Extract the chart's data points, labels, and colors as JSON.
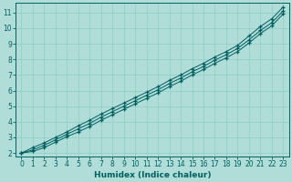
{
  "xlabel": "Humidex (Indice chaleur)",
  "bg_color": "#b0ddd8",
  "grid_color": "#8ecec9",
  "line_color": "#006060",
  "xlim": [
    -0.5,
    23.5
  ],
  "ylim": [
    1.8,
    11.6
  ],
  "x_ticks": [
    0,
    1,
    2,
    3,
    4,
    5,
    6,
    7,
    8,
    9,
    10,
    11,
    12,
    13,
    14,
    15,
    16,
    17,
    18,
    19,
    20,
    21,
    22,
    23
  ],
  "y_ticks": [
    2,
    3,
    4,
    5,
    6,
    7,
    8,
    9,
    10,
    11
  ],
  "line1_x": [
    0,
    1,
    2,
    3,
    4,
    5,
    6,
    7,
    8,
    9,
    10,
    11,
    12,
    13,
    14,
    15,
    16,
    17,
    18,
    19,
    20,
    21,
    22,
    23
  ],
  "line1_y": [
    2.0,
    2.35,
    2.65,
    3.0,
    3.35,
    3.75,
    4.1,
    4.5,
    4.85,
    5.2,
    5.55,
    5.9,
    6.25,
    6.65,
    7.0,
    7.4,
    7.75,
    8.15,
    8.5,
    8.9,
    9.5,
    10.1,
    10.6,
    11.35
  ],
  "line2_x": [
    0,
    1,
    2,
    3,
    4,
    5,
    6,
    7,
    8,
    9,
    10,
    11,
    12,
    13,
    14,
    15,
    16,
    17,
    18,
    19,
    20,
    21,
    22,
    23
  ],
  "line2_y": [
    2.0,
    2.2,
    2.5,
    2.85,
    3.2,
    3.55,
    3.9,
    4.3,
    4.65,
    5.0,
    5.35,
    5.7,
    6.05,
    6.45,
    6.8,
    7.2,
    7.55,
    7.95,
    8.3,
    8.7,
    9.25,
    9.85,
    10.35,
    11.1
  ],
  "line3_x": [
    0,
    1,
    2,
    3,
    4,
    5,
    6,
    7,
    8,
    9,
    10,
    11,
    12,
    13,
    14,
    15,
    16,
    17,
    18,
    19,
    20,
    21,
    22,
    23
  ],
  "line3_y": [
    2.0,
    2.1,
    2.35,
    2.7,
    3.05,
    3.35,
    3.7,
    4.1,
    4.45,
    4.8,
    5.15,
    5.5,
    5.85,
    6.25,
    6.6,
    7.0,
    7.35,
    7.75,
    8.1,
    8.5,
    9.05,
    9.65,
    10.15,
    10.9
  ],
  "marker": "+",
  "markersize": 3.5,
  "linewidth": 0.7,
  "tick_fontsize": 5.5,
  "xlabel_fontsize": 6.5
}
